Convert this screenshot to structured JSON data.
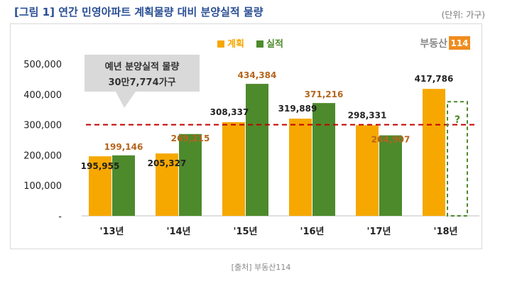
{
  "figure": {
    "title": "[그림 1] 연간 민영아파트 계획물량 대비 분양실적 물량",
    "unit": "(단위: 가구)",
    "source": "[출처] 부동산114"
  },
  "logo": {
    "text": "부동산",
    "number": "114"
  },
  "callout": {
    "line1": "예년 분양실적 물량",
    "line2": "30만7,774가구"
  },
  "future_marker": "?",
  "chart_data": {
    "type": "bar",
    "categories": [
      "'13년",
      "'14년",
      "'15년",
      "'16년",
      "'17년",
      "'18년"
    ],
    "series": [
      {
        "name": "계획",
        "color": "#f6a800",
        "values": [
          195955,
          205327,
          308337,
          319889,
          298331,
          417786
        ],
        "labels": [
          "195,955",
          "205,327",
          "308,337",
          "319,889",
          "298,331",
          "417,786"
        ]
      },
      {
        "name": "실적",
        "color": "#4d8a2c",
        "values": [
          199146,
          269215,
          434384,
          371216,
          264907,
          null
        ],
        "labels": [
          "199,146",
          "269,215",
          "434,384",
          "371,216",
          "264,907",
          ""
        ]
      }
    ],
    "y_ticks": [
      {
        "value": 0,
        "label": "-"
      },
      {
        "value": 100000,
        "label": "100,000"
      },
      {
        "value": 200000,
        "label": "200,000"
      },
      {
        "value": 300000,
        "label": "300,000"
      },
      {
        "value": 400000,
        "label": "400,000"
      },
      {
        "value": 500000,
        "label": "500,000"
      }
    ],
    "ylim": [
      0,
      500000
    ],
    "reference_line": {
      "value": 300000,
      "color": "#c00000"
    },
    "legend_position": "top-center",
    "grid": false
  }
}
